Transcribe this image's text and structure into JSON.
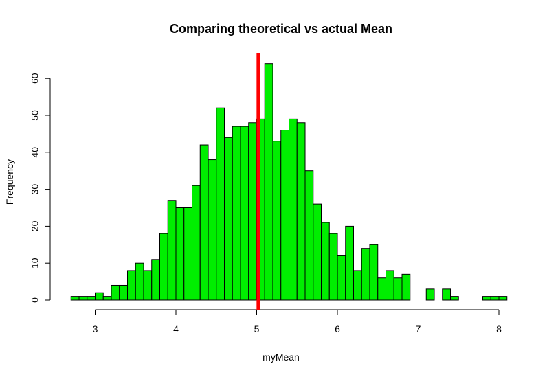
{
  "chart_data": {
    "type": "bar",
    "title": "Comparing theoretical vs actual Mean",
    "xlabel": "myMean",
    "ylabel": "Frequency",
    "bin_width": 0.1,
    "bins_start": 2.7,
    "values": [
      1,
      1,
      1,
      2,
      1,
      4,
      4,
      8,
      10,
      8,
      11,
      18,
      27,
      25,
      25,
      31,
      42,
      38,
      52,
      44,
      47,
      47,
      48,
      49,
      64,
      43,
      46,
      49,
      48,
      35,
      26,
      21,
      18,
      12,
      20,
      8,
      14,
      15,
      6,
      8,
      6,
      7,
      0,
      0,
      3,
      0,
      3,
      1,
      0,
      0,
      0,
      1,
      1,
      1
    ],
    "xlim": [
      2.7,
      7.9
    ],
    "ylim": [
      0,
      64
    ],
    "xticks": [
      3,
      4,
      5,
      6,
      7,
      8
    ],
    "yticks": [
      0,
      10,
      20,
      30,
      40,
      50,
      60
    ],
    "bar_color": "#00ee00",
    "bar_border": "#000000",
    "vline": {
      "x": 5.02,
      "color": "#ff0000"
    },
    "grid": false,
    "legend": "none"
  }
}
